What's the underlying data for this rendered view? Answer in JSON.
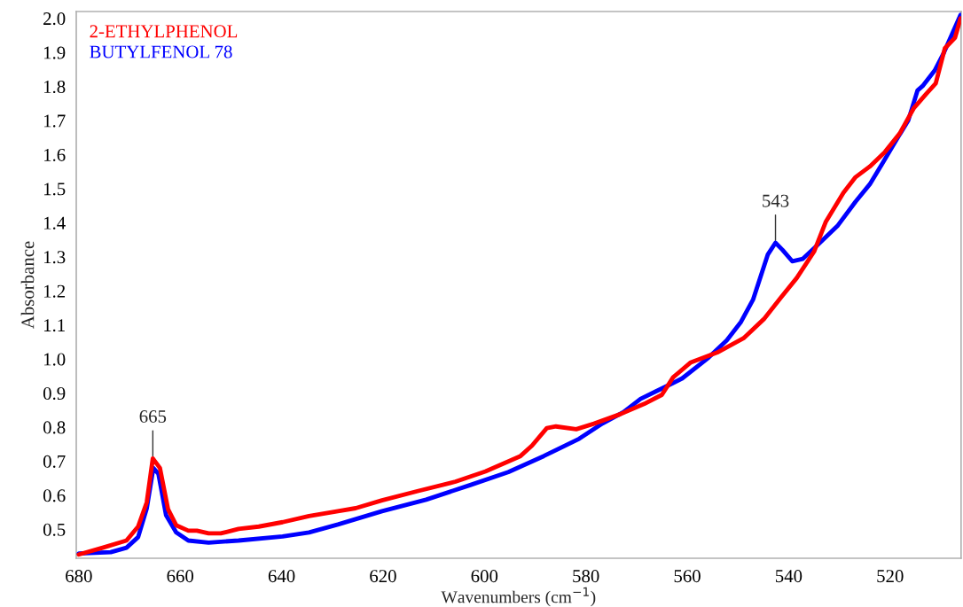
{
  "chart_data": {
    "type": "line",
    "xlabel": "Wavenumbers (cm$^{−1}$)",
    "ylabel": "Absorbance",
    "xlim": [
      680.5,
      506
    ],
    "ylim": [
      0.415,
      2.02
    ],
    "xticks": [
      680,
      660,
      640,
      620,
      600,
      580,
      560,
      540,
      520
    ],
    "yticks": [
      0.5,
      0.6,
      0.7,
      0.8,
      0.9,
      {
        "value": 1.0,
        "label": "1.0"
      },
      1.1,
      1.2,
      1.3,
      1.4,
      1.5,
      1.6,
      1.7,
      1.8,
      1.9,
      {
        "value": 2.0,
        "label": "2.0"
      }
    ],
    "legend": "top left",
    "grid": false,
    "marker": "none",
    "line_style": "solid",
    "annotations": [
      {
        "text": "665",
        "x": 665.4,
        "y": 0.708
      },
      {
        "text": "543",
        "x": 542.6,
        "y": 1.341
      }
    ],
    "series": [
      {
        "name": "2-ETHYLPHENOL",
        "color": "#ff0000",
        "x": [
          680,
          675.3,
          670.6,
          668.3,
          666.6,
          665.4,
          664,
          662.4,
          660.8,
          658.4,
          656.7,
          654.4,
          652,
          648.5,
          644.5,
          639.8,
          634.6,
          628.9,
          625.4,
          620.2,
          613.2,
          605.7,
          599.8,
          592.9,
          590.6,
          587.7,
          585.9,
          581.9,
          578.4,
          573.2,
          568.5,
          565,
          562.8,
          559.3,
          554.1,
          548.9,
          544.9,
          541.6,
          538.4,
          535,
          532.7,
          529.2,
          526.8,
          524,
          521,
          518.1,
          515.3,
          512.9,
          511,
          509.2,
          507.2,
          506.1
        ],
        "values": [
          0.426,
          0.446,
          0.467,
          0.508,
          0.579,
          0.708,
          0.68,
          0.559,
          0.512,
          0.496,
          0.496,
          0.488,
          0.488,
          0.501,
          0.508,
          0.521,
          0.539,
          0.553,
          0.562,
          0.585,
          0.612,
          0.64,
          0.67,
          0.715,
          0.746,
          0.797,
          0.802,
          0.794,
          0.81,
          0.838,
          0.868,
          0.895,
          0.946,
          0.99,
          1.019,
          1.061,
          1.117,
          1.179,
          1.238,
          1.315,
          1.402,
          1.488,
          1.534,
          1.565,
          1.608,
          1.662,
          1.737,
          1.778,
          1.809,
          1.912,
          1.943,
          2.0
        ]
      },
      {
        "name": "BUTYLFENOL 78",
        "color": "#0000ff",
        "x": [
          680,
          673.7,
          670.6,
          668.3,
          666.6,
          665.3,
          664.3,
          662.8,
          660.8,
          658.4,
          654.4,
          648.5,
          639.8,
          634.6,
          628.9,
          620.2,
          611.5,
          602.8,
          595.3,
          588.3,
          581.3,
          576.7,
          572.6,
          569.2,
          566.3,
          564.5,
          561,
          555.8,
          552.2,
          549.4,
          547,
          545.8,
          544.1,
          542.6,
          541.2,
          539.3,
          537.2,
          534.4,
          530.3,
          526.8,
          524,
          521.6,
          518.8,
          516.4,
          514.6,
          513.6,
          511.2,
          509.4,
          506.1
        ],
        "values": [
          0.429,
          0.433,
          0.446,
          0.477,
          0.561,
          0.68,
          0.663,
          0.542,
          0.491,
          0.467,
          0.461,
          0.467,
          0.479,
          0.491,
          0.514,
          0.553,
          0.587,
          0.63,
          0.668,
          0.715,
          0.766,
          0.811,
          0.844,
          0.883,
          0.904,
          0.917,
          0.943,
          1.004,
          1.055,
          1.109,
          1.175,
          1.23,
          1.307,
          1.341,
          1.32,
          1.287,
          1.294,
          1.333,
          1.392,
          1.462,
          1.513,
          1.572,
          1.642,
          1.701,
          1.788,
          1.801,
          1.847,
          1.899,
          2.01
        ]
      }
    ]
  }
}
